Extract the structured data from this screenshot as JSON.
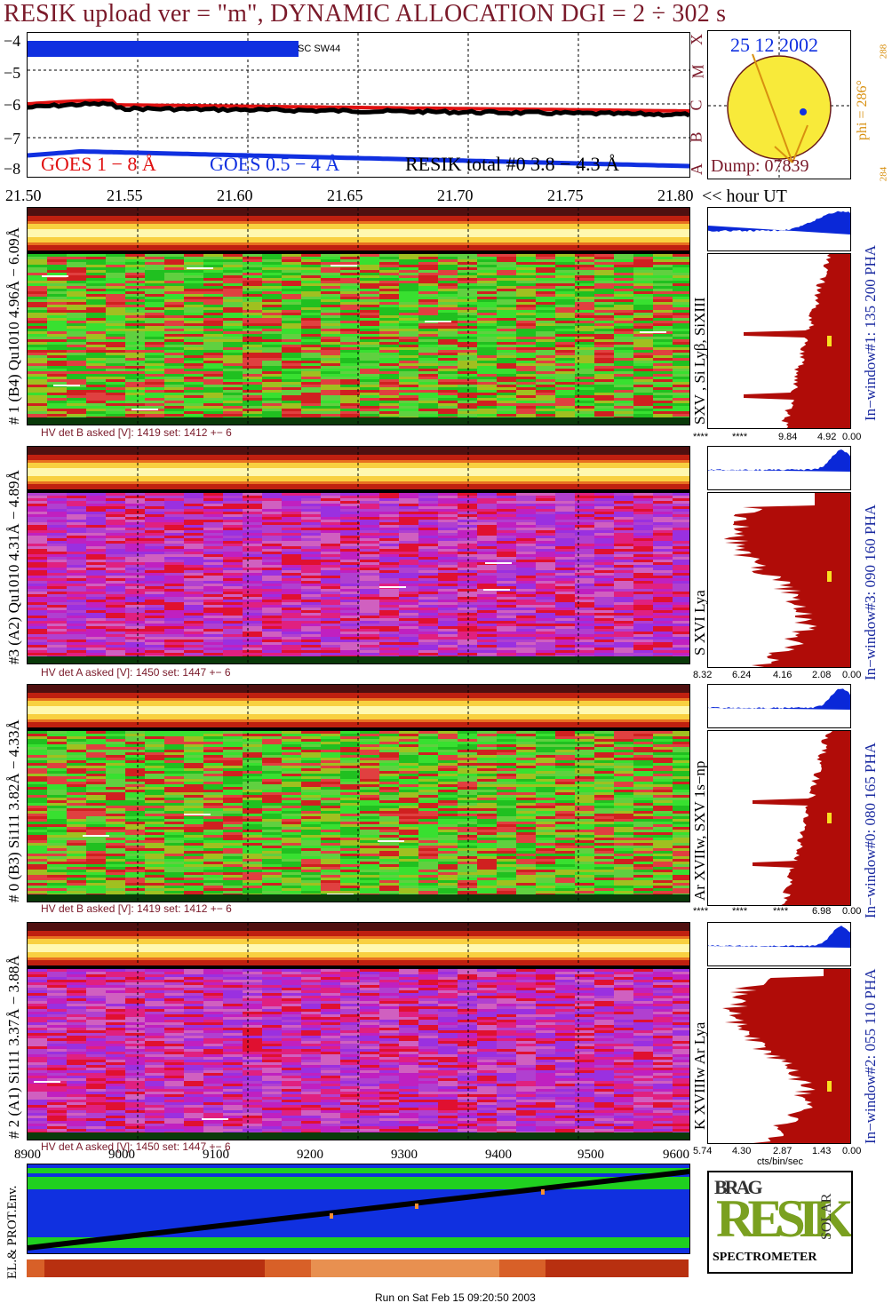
{
  "title": "RESIK upload ver = \"m\", DYNAMIC ALLOCATION  DGI =   2 ÷ 302 s",
  "colors": {
    "goes_long": "#e01010",
    "goes_short": "#1030e0",
    "resik_total": "#000000",
    "title": "#7a1a2a",
    "spectrum_fill": "#b00c08",
    "pha_fill": "#0a28d8"
  },
  "lightcurve": {
    "y_ticks": [
      "−4",
      "−5",
      "−6",
      "−7",
      "−8"
    ],
    "segment_label": "SC SW44",
    "legend_goes_long": "GOES 1 − 8 Å",
    "legend_goes_short": "GOES 0.5 − 4 Å",
    "legend_resik": "RESIK total #0  3.8 − 4.3 Å",
    "side_letters": [
      "X",
      "M",
      "C",
      "B",
      "A"
    ]
  },
  "sun": {
    "date": "25 12 2002",
    "phi": "phi = 286°",
    "phi_min": "284",
    "phi_max": "288",
    "dump": "Dump: 07839"
  },
  "time_axis": {
    "ticks": [
      "21.50",
      "21.55",
      "21.60",
      "21.65",
      "21.70",
      "21.75",
      "21.80"
    ],
    "suffix": "<< hour UT"
  },
  "channels": [
    {
      "label": "# 1 (B4) Qu1010 4.96Å − 6.09Å",
      "hv": "HV det B asked [V]:  1419 set:  1412 +−    6",
      "lines": "SXV , Si Lyβ, SiXIII",
      "window": "In−window#1:  135 200 PHA",
      "ticks": [
        "****",
        "****",
        "9.84",
        "4.92",
        "0.00"
      ],
      "bg": "green"
    },
    {
      "label": "#3 (A2) Qu1010  4.31Å − 4.89Å",
      "hv": "HV det A asked [V]:  1450 set:  1447 +−    6",
      "lines": "S XVI Lya",
      "window": "In−window#3:  090 160 PHA",
      "ticks": [
        "8.32",
        "6.24",
        "4.16",
        "2.08",
        "0.00"
      ],
      "bg": "magenta"
    },
    {
      "label": "# 0 (B3) Si111  3.82Å − 4.33Å",
      "hv": "HV det B asked [V]:  1419 set:  1412 +−    6",
      "lines": "Ar XVIIw, SXV 1s−np",
      "window": "In−window#0:  080 165 PHA",
      "ticks": [
        "****",
        "****",
        "****",
        "6.98",
        "0.00"
      ],
      "bg": "green"
    },
    {
      "label": "# 2 (A1) Si111  3.37Å − 3.88Å",
      "hv": "HV det A asked [V]:  1450 set:  1447 +−    6",
      "lines": "K XVIIIw  Ar Lya",
      "window": "In−window#2:  055 110 PHA",
      "ticks": [
        "5.74",
        "4.30",
        "2.87",
        "1.43",
        "0.00"
      ],
      "bg": "magenta"
    }
  ],
  "cts_label": "cts/bin/sec",
  "env": {
    "label": "EL.& PROT.Env.",
    "x_ticks": [
      "8900",
      "9000",
      "9100",
      "9200",
      "9300",
      "9400",
      "9500",
      "9600"
    ]
  },
  "logo": {
    "letters": "RESIK",
    "top": "BRAG",
    "right": "SOLAR",
    "bottom": "SPECTROMETER"
  },
  "footer": "Run on Sat Feb 15 09:20:50 2003"
}
